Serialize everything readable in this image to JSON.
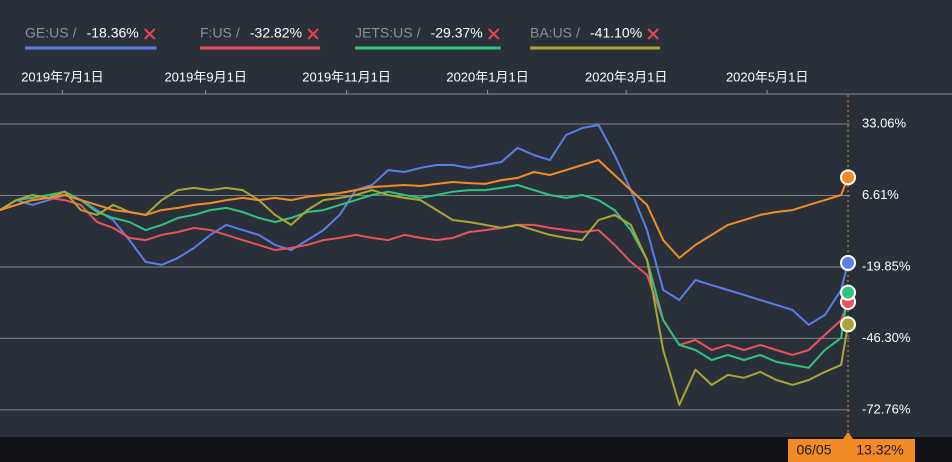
{
  "chart_data": {
    "type": "line",
    "x": [
      "2019-06-04",
      "2019-06-11",
      "2019-06-18",
      "2019-06-25",
      "2019-07-02",
      "2019-07-09",
      "2019-07-16",
      "2019-07-23",
      "2019-07-30",
      "2019-08-06",
      "2019-08-13",
      "2019-08-20",
      "2019-08-27",
      "2019-09-03",
      "2019-09-10",
      "2019-09-17",
      "2019-09-24",
      "2019-10-01",
      "2019-10-08",
      "2019-10-15",
      "2019-10-22",
      "2019-10-29",
      "2019-11-05",
      "2019-11-12",
      "2019-11-19",
      "2019-11-26",
      "2019-12-03",
      "2019-12-10",
      "2019-12-17",
      "2019-12-24",
      "2019-12-31",
      "2020-01-07",
      "2020-01-14",
      "2020-01-21",
      "2020-01-28",
      "2020-02-04",
      "2020-02-11",
      "2020-02-18",
      "2020-02-25",
      "2020-03-03",
      "2020-03-10",
      "2020-03-17",
      "2020-03-24",
      "2020-03-31",
      "2020-04-07",
      "2020-04-14",
      "2020-04-21",
      "2020-04-28",
      "2020-05-05",
      "2020-05-12",
      "2020-05-19",
      "2020-05-26",
      "2020-06-02",
      "2020-06-05"
    ],
    "xlim": [
      "2019-06-04",
      "2020-07-20"
    ],
    "xticks": [
      {
        "value": "2019-07-01",
        "label": "2019年7月1日"
      },
      {
        "value": "2019-09-01",
        "label": "2019年9月1日"
      },
      {
        "value": "2019-11-01",
        "label": "2019年11月1日"
      },
      {
        "value": "2020-01-01",
        "label": "2020年1月1日"
      },
      {
        "value": "2020-03-01",
        "label": "2020年3月1日"
      },
      {
        "value": "2020-05-01",
        "label": "2020年5月1日"
      }
    ],
    "ylim": [
      -82.8,
      43.8
    ],
    "yticks": [
      {
        "value": 33.06,
        "label": "33.06%"
      },
      {
        "value": 6.61,
        "label": "6.61%"
      },
      {
        "value": -19.85,
        "label": "-19.85%"
      },
      {
        "value": -46.3,
        "label": "-46.30%"
      },
      {
        "value": -72.76,
        "label": "-72.76%"
      }
    ],
    "grid": true,
    "cursor_x_label": "06/05",
    "series": [
      {
        "color": "#f28b25",
        "end_label": "13.32%",
        "values": [
          1.2,
          3.1,
          4.9,
          5.7,
          6.8,
          4.9,
          3.1,
          1.2,
          0.5,
          -0.6,
          1.2,
          2.0,
          3.1,
          3.8,
          4.9,
          5.7,
          4.9,
          5.7,
          4.9,
          6.1,
          6.8,
          7.5,
          8.6,
          9.7,
          10.1,
          10.5,
          10.1,
          10.9,
          11.6,
          11.2,
          10.9,
          12.3,
          13.1,
          15.3,
          14.2,
          16.0,
          17.9,
          19.7,
          14.2,
          8.6,
          3.1,
          -9.9,
          -16.5,
          -11.7,
          -8.0,
          -4.3,
          -2.5,
          -0.6,
          0.5,
          1.2,
          3.1,
          4.9,
          6.8,
          13.32
        ]
      },
      {
        "name": "GE:US",
        "color": "#5b7ee8",
        "end_label": "-18.36%",
        "values": [
          1.2,
          4.9,
          3.1,
          4.9,
          6.8,
          4.9,
          1.2,
          -2.5,
          -9.9,
          -18.0,
          -19.1,
          -16.5,
          -12.8,
          -8.0,
          -4.3,
          -6.2,
          -8.0,
          -11.7,
          -13.6,
          -9.9,
          -6.2,
          -0.6,
          8.6,
          10.5,
          16.0,
          15.3,
          16.8,
          17.9,
          17.9,
          16.8,
          17.9,
          19.0,
          24.2,
          21.6,
          19.7,
          29.0,
          31.6,
          32.7,
          21.6,
          8.6,
          -6.2,
          -28.4,
          -32.1,
          -24.7,
          -26.6,
          -28.4,
          -30.2,
          -32.1,
          -33.9,
          -35.8,
          -41.3,
          -37.6,
          -28.4,
          -18.36
        ]
      },
      {
        "name": "F:US",
        "color": "#e9525f",
        "end_label": "-32.82%",
        "values": [
          1.2,
          3.1,
          4.9,
          5.7,
          4.9,
          3.1,
          -3.2,
          -5.4,
          -9.1,
          -9.9,
          -8.0,
          -6.9,
          -5.4,
          -6.2,
          -8.0,
          -9.9,
          -11.7,
          -13.6,
          -12.8,
          -11.7,
          -9.9,
          -9.1,
          -8.0,
          -9.1,
          -9.9,
          -8.0,
          -9.1,
          -9.9,
          -9.1,
          -6.9,
          -6.2,
          -5.4,
          -4.3,
          -4.3,
          -5.4,
          -6.2,
          -6.9,
          -6.2,
          -11.7,
          -18.0,
          -22.8,
          -39.5,
          -48.7,
          -46.9,
          -50.6,
          -48.7,
          -50.6,
          -48.7,
          -50.6,
          -52.4,
          -50.6,
          -45.0,
          -39.5,
          -32.82
        ]
      },
      {
        "name": "JETS:US",
        "color": "#2fc37f",
        "end_label": "-29.37%",
        "values": [
          1.2,
          4.9,
          5.7,
          6.8,
          8.0,
          4.9,
          0.5,
          -1.7,
          -3.2,
          -6.2,
          -4.3,
          -1.7,
          -0.6,
          1.2,
          2.0,
          0.5,
          -1.7,
          -3.2,
          -1.7,
          0.5,
          1.2,
          3.1,
          4.9,
          6.8,
          8.0,
          6.8,
          5.7,
          6.8,
          8.0,
          8.6,
          8.6,
          9.4,
          10.5,
          8.6,
          6.8,
          5.7,
          6.8,
          4.9,
          1.2,
          -6.2,
          -17.2,
          -39.5,
          -48.7,
          -50.6,
          -54.3,
          -52.4,
          -54.3,
          -52.4,
          -55.0,
          -56.1,
          -57.2,
          -50.6,
          -46.1,
          -29.37
        ]
      },
      {
        "name": "BA:US",
        "color": "#a8a634",
        "end_label": "-41.10%",
        "values": [
          1.2,
          4.9,
          6.8,
          5.7,
          8.0,
          1.2,
          -0.6,
          3.1,
          0.5,
          -0.6,
          4.9,
          8.6,
          9.4,
          8.6,
          9.4,
          8.6,
          4.9,
          -0.6,
          -4.3,
          1.2,
          4.9,
          5.7,
          6.8,
          8.6,
          6.8,
          5.7,
          4.9,
          1.2,
          -2.5,
          -3.2,
          -4.3,
          -5.4,
          -4.3,
          -6.2,
          -8.0,
          -9.1,
          -9.9,
          -2.5,
          -0.6,
          -4.3,
          -17.2,
          -50.6,
          -70.9,
          -57.9,
          -63.5,
          -59.8,
          -60.9,
          -58.7,
          -61.7,
          -63.5,
          -61.7,
          -58.7,
          -56.1,
          -41.1
        ]
      }
    ]
  }
}
